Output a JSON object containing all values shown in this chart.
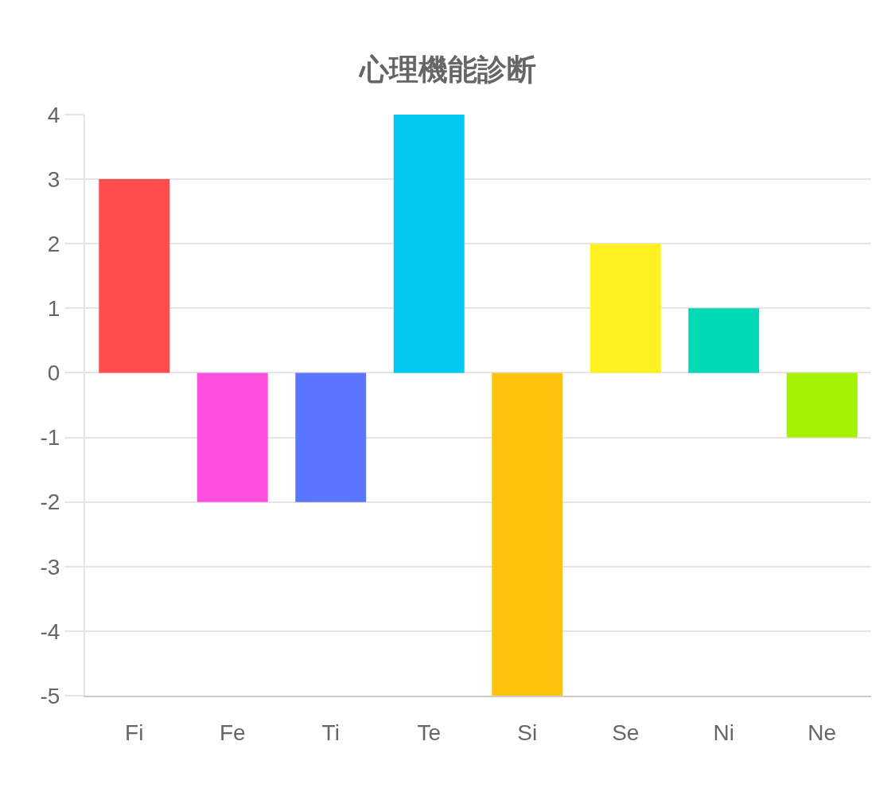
{
  "chart_data": {
    "type": "bar",
    "title": "心理機能診断",
    "categories": [
      "Fi",
      "Fe",
      "Ti",
      "Te",
      "Si",
      "Se",
      "Ni",
      "Ne"
    ],
    "values": [
      3,
      -2,
      -2,
      4,
      -5,
      2,
      1,
      -1
    ],
    "colors": [
      "#ff4d4d",
      "#ff4fe0",
      "#5a75ff",
      "#00c8f0",
      "#ffc20e",
      "#fff020",
      "#00d9b5",
      "#a3f200"
    ],
    "ylim": [
      -5,
      4
    ],
    "yticks": [
      -5,
      -4,
      -3,
      -2,
      -1,
      0,
      1,
      2,
      3,
      4
    ],
    "grid": "y"
  }
}
